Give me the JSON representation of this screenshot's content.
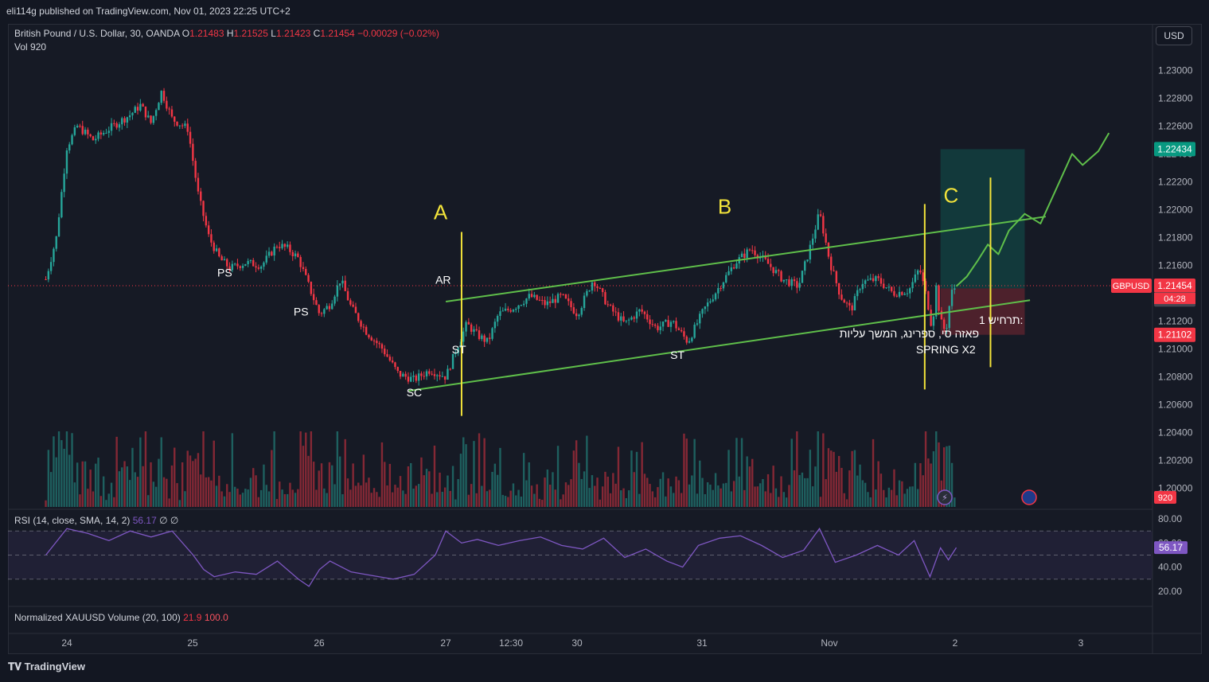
{
  "header": {
    "published": "eli114g published on TradingView.com, Nov 01, 2023 22:25 UTC+2"
  },
  "legend": {
    "symbol": "British Pound / U.S. Dollar, 30, OANDA",
    "o_label": "O",
    "o": "1.21483",
    "h_label": "H",
    "h": "1.21525",
    "l_label": "L",
    "l": "1.21423",
    "c_label": "C",
    "c": "1.21454",
    "change": "−0.00029 (−0.02%)",
    "vol_label": "Vol",
    "vol": "920"
  },
  "rsi_legend": {
    "name": "RSI (14, close, SMA, 14, 2)",
    "value": "56.17",
    "extra": "∅ ∅"
  },
  "xau_legend": {
    "name": "Normalized XAUUSD Volume (20, 100)",
    "v1": "21.9",
    "v2": "100.0"
  },
  "currency_button": "USD",
  "brand": "TradingView",
  "colors": {
    "bg": "#131722",
    "up": "#26a69a",
    "down": "#f23645",
    "channel": "#5fbf4a",
    "annot": "#f2e33a",
    "rsi": "#7e57c2"
  },
  "chart_data": {
    "type": "candlestick",
    "ylim": [
      1.1985,
      1.2315
    ],
    "price_ticks": [
      "1.23000",
      "1.22800",
      "1.22600",
      "1.22400",
      "1.22200",
      "1.22000",
      "1.21800",
      "1.21600",
      "1.21400",
      "1.21200",
      "1.21000",
      "1.20800",
      "1.20600",
      "1.20400",
      "1.20200",
      "1.20000"
    ],
    "x_ticks": [
      "24",
      "25",
      "26",
      "27",
      "12:30",
      "30",
      "31",
      "Nov",
      "2",
      "3"
    ],
    "price_labels": {
      "target": "1.22434",
      "symbol": "GBPUSD",
      "last": "1.21454",
      "countdown": "04:28",
      "entry": "1.21435",
      "stop": "1.21102",
      "volume": "920"
    },
    "close_path": [
      [
        "Oct 23 20:00",
        1.215
      ],
      [
        "Oct 23 22:00",
        1.218
      ],
      [
        "Oct 24 00:00",
        1.2245
      ],
      [
        "Oct 24 02:00",
        1.226
      ],
      [
        "Oct 24 05:00",
        1.225
      ],
      [
        "Oct 24 08:00",
        1.2258
      ],
      [
        "Oct 24 12:00",
        1.2268
      ],
      [
        "Oct 24 14:00",
        1.2275
      ],
      [
        "Oct 24 16:00",
        1.2262
      ],
      [
        "Oct 24 18:00",
        1.2285
      ],
      [
        "Oct 24 20:00",
        1.2265
      ],
      [
        "Oct 24 23:00",
        1.2258
      ],
      [
        "Oct 25 01:00",
        1.221
      ],
      [
        "Oct 25 03:00",
        1.218
      ],
      [
        "Oct 25 05:00",
        1.2165
      ],
      [
        "Oct 25 07:00",
        1.2158
      ],
      [
        "Oct 25 10:00",
        1.2162
      ],
      [
        "Oct 25 13:00",
        1.216
      ],
      [
        "Oct 25 16:00",
        1.2175
      ],
      [
        "Oct 25 18:00",
        1.2172
      ],
      [
        "Oct 25 20:00",
        1.2165
      ],
      [
        "Oct 25 22:00",
        1.2145
      ],
      [
        "Oct 26 00:00",
        1.2125
      ],
      [
        "Oct 26 02:00",
        1.2132
      ],
      [
        "Oct 26 04:00",
        1.215
      ],
      [
        "Oct 26 06:00",
        1.213
      ],
      [
        "Oct 26 09:00",
        1.2112
      ],
      [
        "Oct 26 12:00",
        1.21
      ],
      [
        "Oct 26 15:00",
        1.2082
      ],
      [
        "Oct 26 18:00",
        1.2078
      ],
      [
        "Oct 26 21:00",
        1.2085
      ],
      [
        "Oct 27 00:00",
        1.208
      ],
      [
        "Oct 27 02:00",
        1.21
      ],
      [
        "Oct 27 04:00",
        1.2118
      ],
      [
        "Oct 27 06:00",
        1.211
      ],
      [
        "Oct 27 08:00",
        1.2105
      ],
      [
        "Oct 27 10:00",
        1.2125
      ],
      [
        "Oct 27 13:00",
        1.213
      ],
      [
        "Oct 27 16:00",
        1.2138
      ],
      [
        "Oct 27 19:00",
        1.2132
      ],
      [
        "Oct 27 22:00",
        1.2138
      ],
      [
        "Oct 30 01:00",
        1.2125
      ],
      [
        "Oct 30 04:00",
        1.215
      ],
      [
        "Oct 30 07:00",
        1.213
      ],
      [
        "Oct 30 10:00",
        1.2118
      ],
      [
        "Oct 30 13:00",
        1.2128
      ],
      [
        "Oct 30 16:00",
        1.2115
      ],
      [
        "Oct 30 19:00",
        1.212
      ],
      [
        "Oct 30 22:00",
        1.2105
      ],
      [
        "Oct 31 01:00",
        1.2128
      ],
      [
        "Oct 31 04:00",
        1.2145
      ],
      [
        "Oct 31 07:00",
        1.2162
      ],
      [
        "Oct 31 10:00",
        1.2172
      ],
      [
        "Oct 31 13:00",
        1.2162
      ],
      [
        "Oct 31 16:00",
        1.215
      ],
      [
        "Oct 31 19:00",
        1.2145
      ],
      [
        "Oct 31 21:00",
        1.217
      ],
      [
        "Oct 31 23:00",
        1.2198
      ],
      [
        "Nov 01 01:00",
        1.2162
      ],
      [
        "Nov 01 03:00",
        1.2138
      ],
      [
        "Nov 01 05:00",
        1.2128
      ],
      [
        "Nov 01 07:00",
        1.2148
      ],
      [
        "Nov 01 10:00",
        1.215
      ],
      [
        "Nov 01 13:00",
        1.214
      ],
      [
        "Nov 01 16:00",
        1.2142
      ],
      [
        "Nov 01 18:00",
        1.2158
      ],
      [
        "Nov 01 19:30",
        1.2135
      ],
      [
        "Nov 01 20:30",
        1.2112
      ],
      [
        "Nov 01 21:00",
        1.215
      ],
      [
        "Nov 01 22:00",
        1.212
      ],
      [
        "Nov 01 23:00",
        1.2112
      ],
      [
        "Nov 02 00:00",
        1.214
      ],
      [
        "Nov 02 01:00",
        1.21454
      ]
    ],
    "projection": [
      [
        "Nov 02 01:00",
        1.2145
      ],
      [
        "Nov 02 03:00",
        1.2152
      ],
      [
        "Nov 02 05:00",
        1.2163
      ],
      [
        "Nov 02 07:00",
        1.2175
      ],
      [
        "Nov 02 09:00",
        1.2168
      ],
      [
        "Nov 02 11:00",
        1.2185
      ],
      [
        "Nov 02 14:00",
        1.2197
      ],
      [
        "Nov 02 17:00",
        1.219
      ],
      [
        "Nov 02 20:00",
        1.2215
      ],
      [
        "Nov 02 23:00",
        1.224
      ],
      [
        "Nov 03 01:00",
        1.2232
      ],
      [
        "Nov 03 04:00",
        1.2242
      ],
      [
        "Nov 03 06:00",
        1.2255
      ]
    ],
    "channel": {
      "upper": [
        [
          "Oct 27 00:00",
          1.2134
        ],
        [
          "Nov 02 18:00",
          1.2195
        ]
      ],
      "lower": [
        [
          "Oct 26 17:00",
          1.207
        ],
        [
          "Nov 02 15:00",
          1.2135
        ]
      ]
    },
    "position": {
      "target": 1.22434,
      "entry": 1.21435,
      "stop": 1.21102,
      "from": "Nov 01 22:00",
      "to": "Nov 02 14:00"
    },
    "annotations": [
      {
        "text": "PS",
        "t": "Oct 25 06:00",
        "y": 1.2152
      },
      {
        "text": "PS",
        "t": "Oct 25 20:30",
        "y": 1.2124
      },
      {
        "text": "SC",
        "t": "Oct 26 18:00",
        "y": 1.2066
      },
      {
        "text": "AR",
        "t": "Oct 26 23:30",
        "y": 1.2147
      },
      {
        "text": "ST",
        "t": "Oct 27 02:30",
        "y": 1.2097
      },
      {
        "text": "ST",
        "t": "Oct 30 20:00",
        "y": 1.2093
      },
      {
        "text": "SPRING X2",
        "t": "Nov 01 23:00",
        "y": 1.2097
      }
    ],
    "phase_letters": [
      {
        "text": "A",
        "t": "Oct 26 23:00",
        "y": 1.2193
      },
      {
        "text": "B",
        "t": "Oct 31 05:00",
        "y": 1.2197
      },
      {
        "text": "C",
        "t": "Nov 02 00:00",
        "y": 1.2205
      }
    ],
    "phase_lines": [
      {
        "t": "Oct 27 03:00",
        "y1": 1.2184,
        "y2": 1.2052
      },
      {
        "t": "Nov 01 19:00",
        "y1": 1.2204,
        "y2": 1.2071
      },
      {
        "t": "Nov 02 07:30",
        "y1": 1.2223,
        "y2": 1.2087
      }
    ],
    "scenario_note": [
      "תרחיש 1:",
      "פאזה סי, ספרינג, המשך עליות"
    ],
    "volume": {
      "last": 920
    },
    "rsi": {
      "ticks": [
        "80.00",
        "60.00",
        "40.00",
        "20.00"
      ],
      "ylim": [
        10,
        88
      ],
      "last": 56.17,
      "path": [
        [
          "Oct 23 20:00",
          50
        ],
        [
          "Oct 24 00:00",
          72
        ],
        [
          "Oct 24 04:00",
          68
        ],
        [
          "Oct 24 08:00",
          62
        ],
        [
          "Oct 24 12:00",
          70
        ],
        [
          "Oct 24 16:00",
          65
        ],
        [
          "Oct 24 20:00",
          70
        ],
        [
          "Oct 25 00:00",
          50
        ],
        [
          "Oct 25 02:00",
          38
        ],
        [
          "Oct 25 04:00",
          32
        ],
        [
          "Oct 25 08:00",
          36
        ],
        [
          "Oct 25 12:00",
          34
        ],
        [
          "Oct 25 16:00",
          45
        ],
        [
          "Oct 25 20:00",
          30
        ],
        [
          "Oct 25 22:00",
          24
        ],
        [
          "Oct 26 00:00",
          38
        ],
        [
          "Oct 26 02:00",
          45
        ],
        [
          "Oct 26 06:00",
          36
        ],
        [
          "Oct 26 10:00",
          33
        ],
        [
          "Oct 26 14:00",
          30
        ],
        [
          "Oct 26 18:00",
          34
        ],
        [
          "Oct 26 22:00",
          50
        ],
        [
          "Oct 27 00:00",
          70
        ],
        [
          "Oct 27 03:00",
          60
        ],
        [
          "Oct 27 06:00",
          63
        ],
        [
          "Oct 27 10:00",
          58
        ],
        [
          "Oct 27 14:00",
          62
        ],
        [
          "Oct 27 18:00",
          65
        ],
        [
          "Oct 27 22:00",
          58
        ],
        [
          "Oct 30 02:00",
          55
        ],
        [
          "Oct 30 06:00",
          64
        ],
        [
          "Oct 30 10:00",
          48
        ],
        [
          "Oct 30 14:00",
          55
        ],
        [
          "Oct 30 18:00",
          45
        ],
        [
          "Oct 30 21:00",
          40
        ],
        [
          "Oct 31 00:00",
          58
        ],
        [
          "Oct 31 04:00",
          64
        ],
        [
          "Oct 31 08:00",
          66
        ],
        [
          "Oct 31 12:00",
          58
        ],
        [
          "Oct 31 16:00",
          48
        ],
        [
          "Oct 31 20:00",
          54
        ],
        [
          "Oct 31 23:00",
          72
        ],
        [
          "Nov 01 02:00",
          44
        ],
        [
          "Nov 01 06:00",
          50
        ],
        [
          "Nov 01 10:00",
          58
        ],
        [
          "Nov 01 14:00",
          50
        ],
        [
          "Nov 01 17:00",
          62
        ],
        [
          "Nov 01 20:00",
          32
        ],
        [
          "Nov 01 22:00",
          56
        ],
        [
          "Nov 01 23:30",
          46
        ],
        [
          "Nov 02 01:00",
          56.17
        ]
      ]
    }
  }
}
